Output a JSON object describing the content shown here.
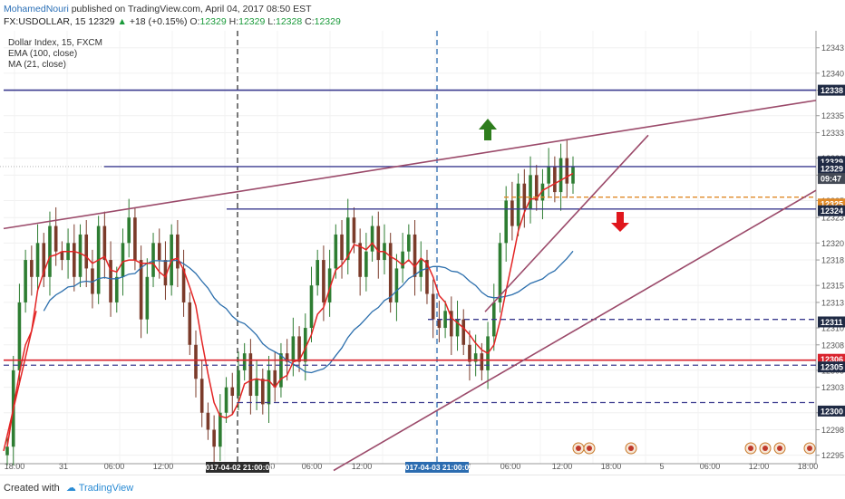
{
  "header": {
    "author": "MohamedNouri",
    "published_text": "published on TradingView.com, April 04, 2017 08:50 EST",
    "symbol": "FX:USDOLLAR, 15",
    "last_price": "12329",
    "change_arrow": "▲",
    "change": "+18 (+0.15%)",
    "o_label": "O:",
    "o_value": "12329",
    "h_label": "H:",
    "h_value": "12329",
    "l_label": "L:",
    "l_value": "12328",
    "c_label": "C:",
    "c_value": "12329"
  },
  "legend": {
    "title": "Dollar Index, 15, FXCM",
    "ema": "EMA (100, close)",
    "ma": "MA (21, close)"
  },
  "footer": {
    "created_with": "Created with",
    "brand": "TradingView"
  },
  "colors": {
    "candle_up": "#2e7d32",
    "candle_down": "#7b3b2a",
    "ma": "#e32424",
    "ema": "#2c6fad",
    "trendline": "#9b4a6a",
    "level": "#3b3b8f",
    "orange": "#e08a28",
    "badge": "#1f2a44",
    "red_level": "#d9232d",
    "arrow_up": "#2e7d1d",
    "arrow_down": "#e0161c"
  },
  "chart_data": {
    "type": "candlestick",
    "y_ticks": [
      "12343",
      "12340",
      "12338",
      "12335",
      "12333",
      "12330",
      "12328",
      "12325",
      "12323",
      "12320",
      "12318",
      "12315",
      "12313",
      "12310",
      "12308",
      "12305",
      "12303",
      "12300",
      "12298",
      "12295"
    ],
    "x_ticks": [
      "18:00",
      "31",
      "06:00",
      "12:00",
      "18:00",
      "06:00",
      "12:00",
      "18:00",
      "06:00",
      "12:00",
      "18:00",
      "5",
      "06:00",
      "12:00",
      "18:00"
    ],
    "x_highlights": [
      "2017-04-02 21:00:00",
      "2017-04-03 21:00:00"
    ],
    "price_labels": [
      {
        "value": "12338",
        "price": 12338
      },
      {
        "value": "12329",
        "price": 12329.6
      },
      {
        "value": "12329",
        "price": 12328.8
      },
      {
        "value": "09:47",
        "price": 12327.6
      },
      {
        "value": "12325",
        "price": 12324.6,
        "kind": "orange"
      },
      {
        "value": "12324",
        "price": 12323.8
      },
      {
        "value": "12311",
        "price": 12310.7
      },
      {
        "value": "12306",
        "price": 12306.3,
        "kind": "red"
      },
      {
        "value": "12305",
        "price": 12305.4
      },
      {
        "value": "12300",
        "price": 12300.2
      }
    ],
    "horizontal_levels": [
      12338,
      12329,
      12325.4,
      12324,
      12311,
      12306.2,
      12305.6,
      12301.2
    ],
    "ylim": [
      12294,
      12345
    ],
    "close_series": [
      12296,
      12305,
      12313,
      12318,
      12316,
      12320,
      12316,
      12322,
      12319,
      12318,
      12320,
      12316,
      12321,
      12317,
      12314,
      12322,
      12318,
      12313,
      12316,
      12320,
      12323,
      12318,
      12311,
      12316,
      12320,
      12318,
      12315,
      12321,
      12317,
      12313,
      12308,
      12304,
      12300,
      12298,
      12296,
      12300,
      12303,
      12302,
      12305,
      12307,
      12302,
      12304,
      12301,
      12305,
      12303,
      12307,
      12306,
      12309,
      12306,
      12310,
      12315,
      12318,
      12313,
      12317,
      12321,
      12318,
      12323,
      12320,
      12316,
      12319,
      12322,
      12318,
      12320,
      12313,
      12317,
      12319,
      12321,
      12316,
      12318,
      12314,
      12311,
      12310,
      12312,
      12309,
      12311,
      12308,
      12306,
      12307,
      12305,
      12309,
      12313,
      12320,
      12325,
      12322,
      12327,
      12324,
      12328,
      12325,
      12327,
      12329,
      12326,
      12330,
      12327,
      12329
    ]
  }
}
